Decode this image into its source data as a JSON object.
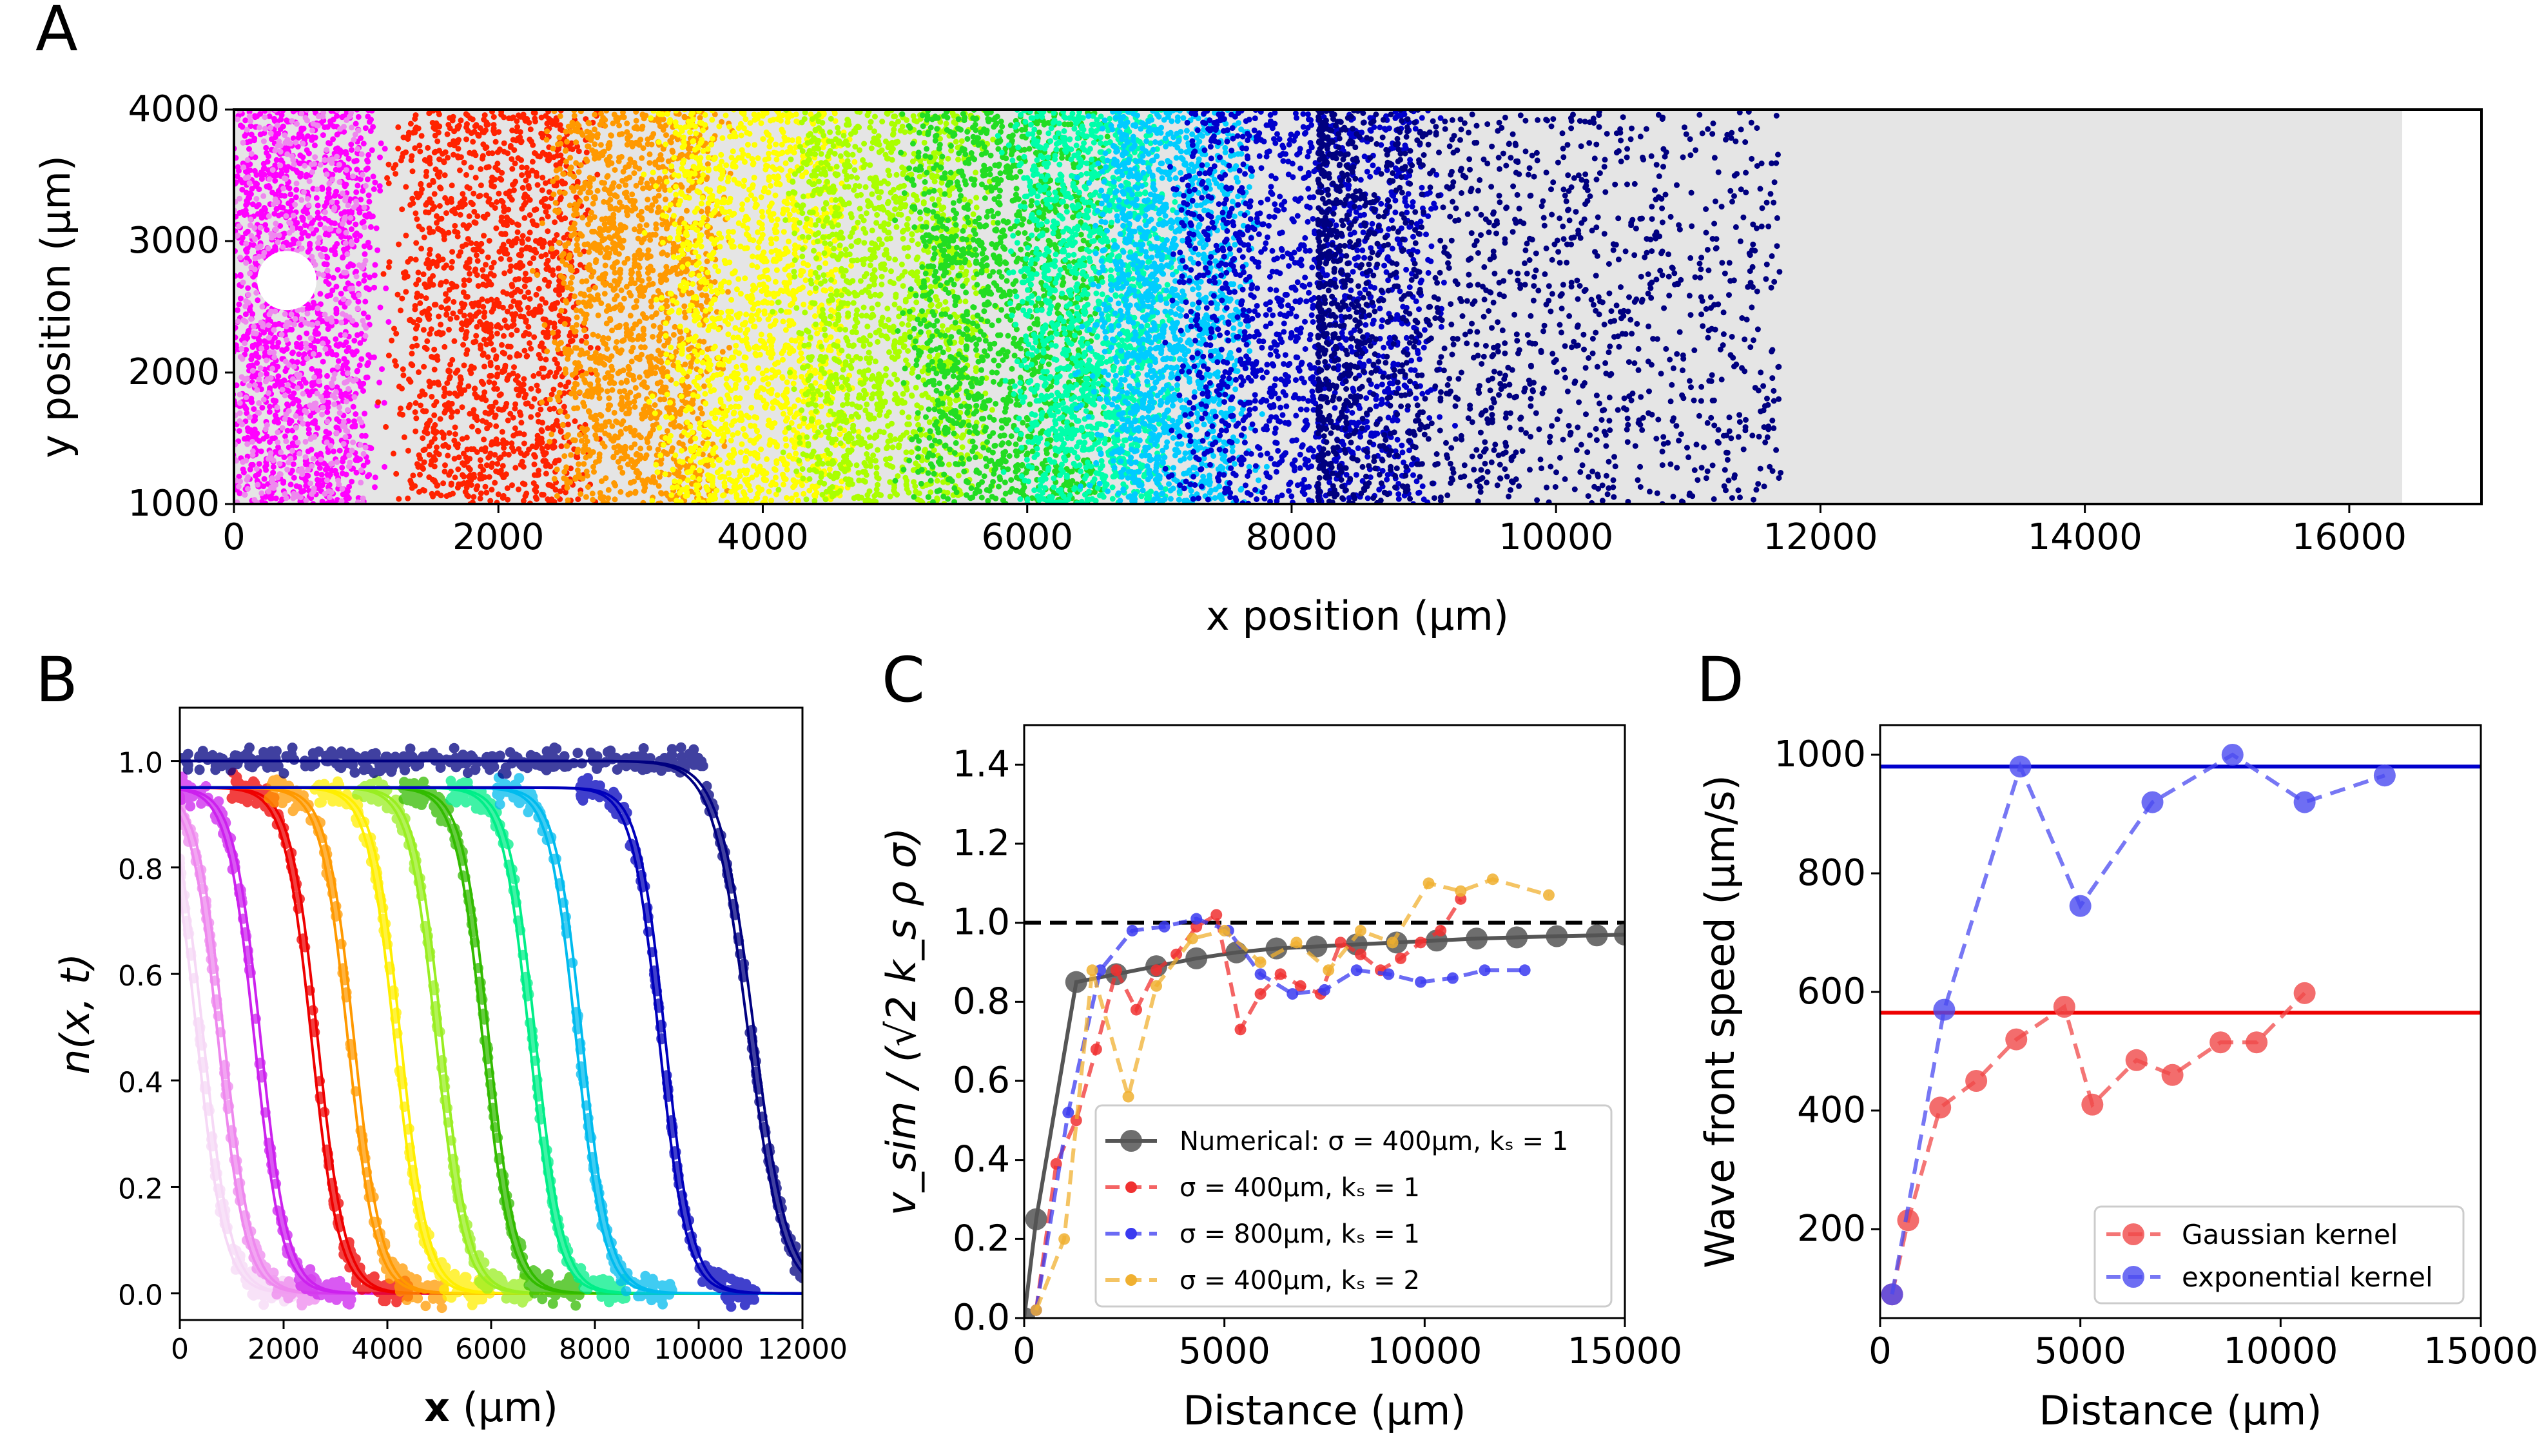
{
  "panel_labels": {
    "a": "A",
    "b": "B",
    "c": "C",
    "d": "D"
  },
  "chart_data": [
    {
      "panel": "A",
      "type": "scatter",
      "xlabel": "x position (μm)",
      "ylabel": "y position (μm)",
      "xlim": [
        0,
        17000
      ],
      "ylim": [
        1000,
        4000
      ],
      "xticks": [
        "0",
        "2000",
        "4000",
        "6000",
        "8000",
        "10000",
        "12000",
        "14000",
        "16000"
      ],
      "yticks": [
        "1000",
        "2000",
        "3000",
        "4000"
      ],
      "domain_extent_x": [
        0,
        16400
      ],
      "domain_color": "#e5e5e5",
      "obstacle": {
        "x": 400,
        "y": 2700
      },
      "color_bands": [
        {
          "color": "#ff00ff",
          "x_from": 0,
          "x_to": 1000
        },
        {
          "color": "#ff2200",
          "x_from": 1300,
          "x_to": 2600
        },
        {
          "color": "#ff9900",
          "x_from": 2500,
          "x_to": 3600
        },
        {
          "color": "#ffff00",
          "x_from": 3300,
          "x_to": 4600
        },
        {
          "color": "#aaff00",
          "x_from": 4300,
          "x_to": 5600
        },
        {
          "color": "#22dd22",
          "x_from": 5200,
          "x_to": 6500
        },
        {
          "color": "#00ffaa",
          "x_from": 6000,
          "x_to": 7000
        },
        {
          "color": "#00ccff",
          "x_from": 6600,
          "x_to": 7600
        },
        {
          "color": "#0000cc",
          "x_from": 7200,
          "x_to": 9000
        },
        {
          "color": "#000080",
          "x_from": 8200,
          "x_to": 11700
        }
      ]
    },
    {
      "panel": "B",
      "type": "line",
      "xlabel_bold": "x",
      "xlabel_rest": " (μm)",
      "ylabel": "n(x, t)",
      "xlim": [
        0,
        12000
      ],
      "ylim": [
        -0.05,
        1.1
      ],
      "xticks": [
        "0",
        "2000",
        "4000",
        "6000",
        "8000",
        "10000",
        "12000"
      ],
      "yticks": [
        "0.0",
        "0.2",
        "0.4",
        "0.6",
        "0.8",
        "1.0"
      ],
      "fronts": [
        {
          "color": "#f6d8f6",
          "x50": 400
        },
        {
          "color": "#ee88ee",
          "x50": 800
        },
        {
          "color": "#cc22ee",
          "x50": 1500
        },
        {
          "color": "#ee0000",
          "x50": 2600
        },
        {
          "color": "#ff9900",
          "x50": 3300
        },
        {
          "color": "#ffee00",
          "x50": 4200
        },
        {
          "color": "#99ee22",
          "x50": 5000
        },
        {
          "color": "#33bb00",
          "x50": 5900
        },
        {
          "color": "#00ee88",
          "x50": 6800
        },
        {
          "color": "#00bbee",
          "x50": 7700
        },
        {
          "color": "#0000bb",
          "x50": 9300
        },
        {
          "color": "#000080",
          "x50": 11000
        }
      ]
    },
    {
      "panel": "C",
      "type": "line",
      "xlabel": "Distance (μm)",
      "ylabel": "v_sim / (√2 k_s ρ σ)",
      "xlim": [
        0,
        15000
      ],
      "ylim": [
        0,
        1.5
      ],
      "xticks": [
        "0",
        "5000",
        "10000",
        "15000"
      ],
      "yticks": [
        "0.0",
        "0.2",
        "0.4",
        "0.6",
        "0.8",
        "1.0",
        "1.2",
        "1.4"
      ],
      "reference_line": 1.0,
      "series": [
        {
          "name": "Numerical: σ = 400μm, kₛ = 1",
          "color": "#555555",
          "x": [
            0,
            300,
            1300,
            2300,
            3300,
            4300,
            5300,
            6300,
            7300,
            8300,
            9300,
            10300,
            11300,
            12300,
            13300,
            14300,
            15000
          ],
          "y": [
            0.0,
            0.25,
            0.85,
            0.87,
            0.89,
            0.91,
            0.925,
            0.935,
            0.94,
            0.945,
            0.95,
            0.955,
            0.96,
            0.963,
            0.966,
            0.968,
            0.97
          ]
        },
        {
          "name": "σ = 400μm, kₛ = 1",
          "color": "#f03030",
          "x": [
            300,
            800,
            1300,
            1800,
            2300,
            2800,
            3300,
            3800,
            4300,
            4800,
            5400,
            5900,
            6400,
            6900,
            7400,
            7900,
            8400,
            8900,
            9400,
            9900,
            10400,
            10900
          ],
          "y": [
            0.02,
            0.39,
            0.5,
            0.68,
            0.88,
            0.78,
            0.88,
            0.92,
            0.99,
            1.02,
            0.73,
            0.82,
            0.87,
            0.84,
            0.82,
            0.95,
            0.92,
            0.88,
            0.91,
            0.95,
            0.98,
            1.06
          ]
        },
        {
          "name": "σ = 800μm, kₛ = 1",
          "color": "#3a3af0",
          "x": [
            300,
            1100,
            1900,
            2700,
            3500,
            4300,
            5100,
            5900,
            6700,
            7500,
            8300,
            9100,
            9900,
            10700,
            11500,
            12500
          ],
          "y": [
            0.02,
            0.52,
            0.88,
            0.98,
            0.99,
            1.01,
            0.98,
            0.87,
            0.82,
            0.83,
            0.88,
            0.87,
            0.85,
            0.86,
            0.88,
            0.88
          ]
        },
        {
          "name": "σ = 400μm, kₛ = 2",
          "color": "#f0b030",
          "x": [
            300,
            1000,
            1700,
            2600,
            3300,
            4200,
            5000,
            5900,
            6800,
            7600,
            8400,
            9200,
            10100,
            10900,
            11700,
            13100
          ],
          "y": [
            0.02,
            0.2,
            0.88,
            0.56,
            0.84,
            0.96,
            0.98,
            0.9,
            0.95,
            0.88,
            0.98,
            0.95,
            1.1,
            1.08,
            1.11,
            1.07
          ]
        }
      ]
    },
    {
      "panel": "D",
      "type": "line",
      "xlabel": "Distance (μm)",
      "ylabel": "Wave front speed (μm/s)",
      "xlim": [
        0,
        15000
      ],
      "ylim": [
        50,
        1050
      ],
      "xticks": [
        "0",
        "5000",
        "10000",
        "15000"
      ],
      "yticks": [
        "200",
        "400",
        "600",
        "800",
        "1000"
      ],
      "reference_lines": [
        {
          "y": 565,
          "color": "#ee0000"
        },
        {
          "y": 980,
          "color": "#0000cc"
        }
      ],
      "series": [
        {
          "name": "Gaussian kernel",
          "color": "#f04848",
          "x": [
            300,
            700,
            1500,
            2400,
            3400,
            4600,
            5300,
            6400,
            7300,
            8500,
            9400,
            10600
          ],
          "y": [
            90,
            215,
            405,
            450,
            520,
            575,
            410,
            485,
            460,
            515,
            515,
            598
          ]
        },
        {
          "name": "exponential kernel",
          "color": "#4a4af0",
          "x": [
            300,
            1600,
            3500,
            5000,
            6800,
            8800,
            10600,
            12600
          ],
          "y": [
            90,
            570,
            980,
            745,
            920,
            1000,
            920,
            965
          ]
        }
      ]
    }
  ]
}
